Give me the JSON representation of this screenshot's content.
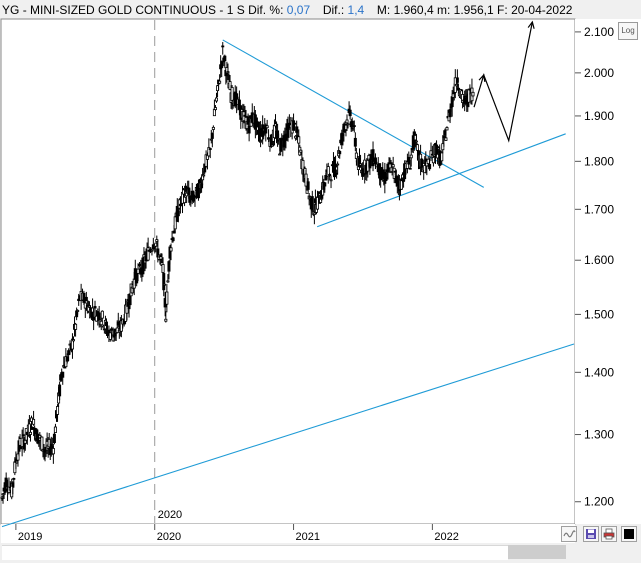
{
  "header": {
    "symbol": "YG",
    "dash": "-",
    "name": "MINI-SIZED GOLD CONTINUOUS",
    "dash2": "-",
    "period": "1 S",
    "dif_pct_label": "Dif. %:",
    "dif_pct_value": "0,07",
    "dif_label": "Dif.:",
    "dif_value": "1,4",
    "max_label": "M:",
    "max_value": "1.960,4",
    "min_label": "m:",
    "min_value": "1.956,1",
    "date_label": "F:",
    "date_value": "20-04-2022"
  },
  "log_button": "Log",
  "colors": {
    "background": "#ffffff",
    "candles": "#000000",
    "trendlines": "#1f9bd6",
    "value_text": "#2a73c9",
    "grid": "#9a9a9a"
  },
  "toolbar_icons": [
    "wave-icon",
    "save-icon",
    "print-icon",
    "black-square-icon"
  ],
  "chart_data": {
    "type": "candlestick",
    "scale": "log",
    "ylim": [
      1170,
      2130
    ],
    "y_ticks": [
      2100,
      2000,
      1900,
      1800,
      1700,
      1600,
      1500,
      1400,
      1300,
      1200
    ],
    "y_tick_labels": [
      "2.100",
      "2.000",
      "1.900",
      "1.800",
      "1.700",
      "1.600",
      "1.500",
      "1.400",
      "1.300",
      "1.200"
    ],
    "x_ticks": [
      2019,
      2020,
      2021,
      2022
    ],
    "x_tick_labels": [
      "2019",
      "2020",
      "2021",
      "2022"
    ],
    "x_range": [
      2018.9,
      2023.02
    ],
    "vertical_marker": {
      "x": 2020.0,
      "label": "2020"
    },
    "price_path": [
      [
        2018.9,
        1205
      ],
      [
        2018.93,
        1230
      ],
      [
        2018.97,
        1215
      ],
      [
        2019.0,
        1260
      ],
      [
        2019.03,
        1285
      ],
      [
        2019.06,
        1290
      ],
      [
        2019.09,
        1305
      ],
      [
        2019.12,
        1320
      ],
      [
        2019.15,
        1300
      ],
      [
        2019.18,
        1290
      ],
      [
        2019.21,
        1275
      ],
      [
        2019.24,
        1280
      ],
      [
        2019.27,
        1282
      ],
      [
        2019.3,
        1340
      ],
      [
        2019.33,
        1400
      ],
      [
        2019.36,
        1420
      ],
      [
        2019.4,
        1440
      ],
      [
        2019.43,
        1480
      ],
      [
        2019.46,
        1530
      ],
      [
        2019.5,
        1525
      ],
      [
        2019.53,
        1510
      ],
      [
        2019.56,
        1505
      ],
      [
        2019.6,
        1500
      ],
      [
        2019.63,
        1490
      ],
      [
        2019.66,
        1470
      ],
      [
        2019.7,
        1465
      ],
      [
        2019.73,
        1470
      ],
      [
        2019.76,
        1480
      ],
      [
        2019.8,
        1510
      ],
      [
        2019.83,
        1540
      ],
      [
        2019.86,
        1570
      ],
      [
        2019.9,
        1580
      ],
      [
        2019.93,
        1600
      ],
      [
        2019.96,
        1620
      ],
      [
        2020.0,
        1640
      ],
      [
        2020.03,
        1610
      ],
      [
        2020.06,
        1580
      ],
      [
        2020.08,
        1500
      ],
      [
        2020.11,
        1620
      ],
      [
        2020.14,
        1660
      ],
      [
        2020.17,
        1700
      ],
      [
        2020.2,
        1720
      ],
      [
        2020.23,
        1740
      ],
      [
        2020.26,
        1720
      ],
      [
        2020.3,
        1730
      ],
      [
        2020.33,
        1750
      ],
      [
        2020.36,
        1790
      ],
      [
        2020.4,
        1820
      ],
      [
        2020.43,
        1900
      ],
      [
        2020.46,
        1970
      ],
      [
        2020.49,
        2050
      ],
      [
        2020.52,
        2000
      ],
      [
        2020.55,
        1950
      ],
      [
        2020.58,
        1940
      ],
      [
        2020.62,
        1910
      ],
      [
        2020.65,
        1890
      ],
      [
        2020.68,
        1880
      ],
      [
        2020.71,
        1900
      ],
      [
        2020.74,
        1870
      ],
      [
        2020.77,
        1860
      ],
      [
        2020.8,
        1880
      ],
      [
        2020.84,
        1840
      ],
      [
        2020.87,
        1870
      ],
      [
        2020.9,
        1830
      ],
      [
        2020.93,
        1850
      ],
      [
        2020.96,
        1870
      ],
      [
        2021.0,
        1880
      ],
      [
        2021.03,
        1850
      ],
      [
        2021.06,
        1800
      ],
      [
        2021.09,
        1760
      ],
      [
        2021.12,
        1720
      ],
      [
        2021.15,
        1700
      ],
      [
        2021.18,
        1720
      ],
      [
        2021.21,
        1740
      ],
      [
        2021.24,
        1770
      ],
      [
        2021.28,
        1780
      ],
      [
        2021.31,
        1790
      ],
      [
        2021.34,
        1840
      ],
      [
        2021.37,
        1880
      ],
      [
        2021.4,
        1900
      ],
      [
        2021.43,
        1880
      ],
      [
        2021.46,
        1800
      ],
      [
        2021.49,
        1780
      ],
      [
        2021.52,
        1790
      ],
      [
        2021.55,
        1800
      ],
      [
        2021.58,
        1810
      ],
      [
        2021.62,
        1780
      ],
      [
        2021.65,
        1760
      ],
      [
        2021.68,
        1780
      ],
      [
        2021.71,
        1790
      ],
      [
        2021.74,
        1760
      ],
      [
        2021.77,
        1750
      ],
      [
        2021.8,
        1780
      ],
      [
        2021.84,
        1800
      ],
      [
        2021.87,
        1850
      ],
      [
        2021.9,
        1810
      ],
      [
        2021.93,
        1790
      ],
      [
        2021.96,
        1790
      ],
      [
        2022.0,
        1810
      ],
      [
        2022.03,
        1830
      ],
      [
        2022.06,
        1800
      ],
      [
        2022.09,
        1850
      ],
      [
        2022.12,
        1900
      ],
      [
        2022.15,
        1950
      ],
      [
        2022.18,
        1990
      ],
      [
        2022.21,
        1940
      ],
      [
        2022.24,
        1930
      ],
      [
        2022.27,
        1950
      ],
      [
        2022.3,
        1958
      ]
    ],
    "trendlines": [
      {
        "name": "upper-triangle",
        "from": [
          2020.49,
          2080
        ],
        "to": [
          2022.37,
          1745
        ]
      },
      {
        "name": "lower-triangle",
        "from": [
          2021.17,
          1665
        ],
        "to": [
          2022.96,
          1860
        ]
      },
      {
        "name": "long-term-support",
        "from": [
          2018.9,
          1165
        ],
        "to": [
          2023.02,
          1448
        ]
      }
    ],
    "projection_arrow": [
      [
        2022.3,
        1920
      ],
      [
        2022.37,
        1995
      ],
      [
        2022.55,
        1845
      ],
      [
        2022.72,
        2125
      ]
    ]
  }
}
